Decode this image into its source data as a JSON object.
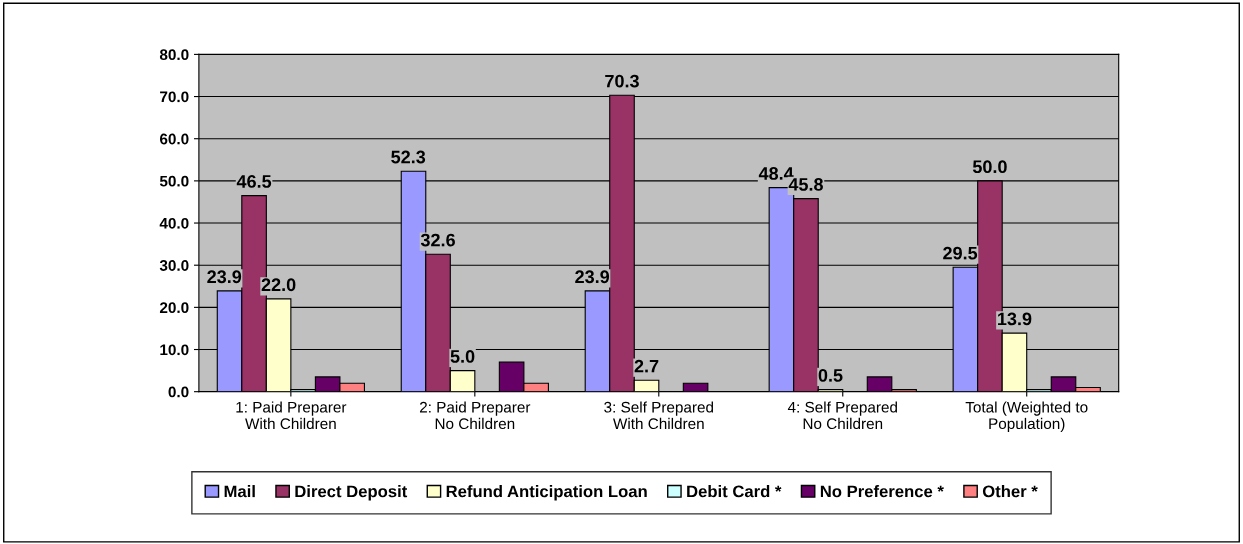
{
  "chart_data": {
    "type": "bar",
    "categories": [
      "1: Paid Preparer\nWith Children",
      "2: Paid Preparer\nNo Children",
      "3: Self Prepared\nWith Children",
      "4: Self Prepared\nNo Children",
      "Total (Weighted to\nPopulation)"
    ],
    "series": [
      {
        "name": "Mail",
        "color": "#9999ff",
        "values": [
          23.9,
          52.3,
          23.9,
          48.4,
          29.5
        ],
        "value_labels": [
          "23.9",
          "52.3",
          "23.9",
          "48.4",
          "29.5"
        ]
      },
      {
        "name": "Direct Deposit",
        "color": "#993366",
        "values": [
          46.5,
          32.6,
          70.3,
          45.8,
          50.0
        ],
        "value_labels": [
          "46.5",
          "32.6",
          "70.3",
          "45.8",
          "50.0"
        ]
      },
      {
        "name": "Refund Anticipation Loan",
        "color": "#ffffcc",
        "values": [
          22.0,
          5.0,
          2.7,
          0.5,
          13.9
        ],
        "value_labels": [
          "22.0",
          "5.0",
          "2.7",
          "0.5",
          "13.9"
        ]
      },
      {
        "name": "Debit Card *",
        "color": "#ccffff",
        "values": [
          0.5,
          null,
          null,
          null,
          0.5
        ]
      },
      {
        "name": "No Preference *",
        "color": "#660066",
        "values": [
          3.5,
          7.0,
          2.0,
          3.5,
          3.5
        ]
      },
      {
        "name": "Other *",
        "color": "#ff8080",
        "values": [
          2.0,
          2.0,
          null,
          0.5,
          1.0
        ]
      }
    ],
    "ylim": [
      0,
      80
    ],
    "yticks": [
      {
        "value": 0,
        "label": "0.0"
      },
      {
        "value": 10,
        "label": "10.0"
      },
      {
        "value": 20,
        "label": "20.0"
      },
      {
        "value": 30,
        "label": "30.0"
      },
      {
        "value": 40,
        "label": "40.0"
      },
      {
        "value": 50,
        "label": "50.0"
      },
      {
        "value": 60,
        "label": "60.0"
      },
      {
        "value": 70,
        "label": "70.0"
      },
      {
        "value": 80,
        "label": "80.0"
      }
    ],
    "grid": "y",
    "legend": "bottom"
  }
}
